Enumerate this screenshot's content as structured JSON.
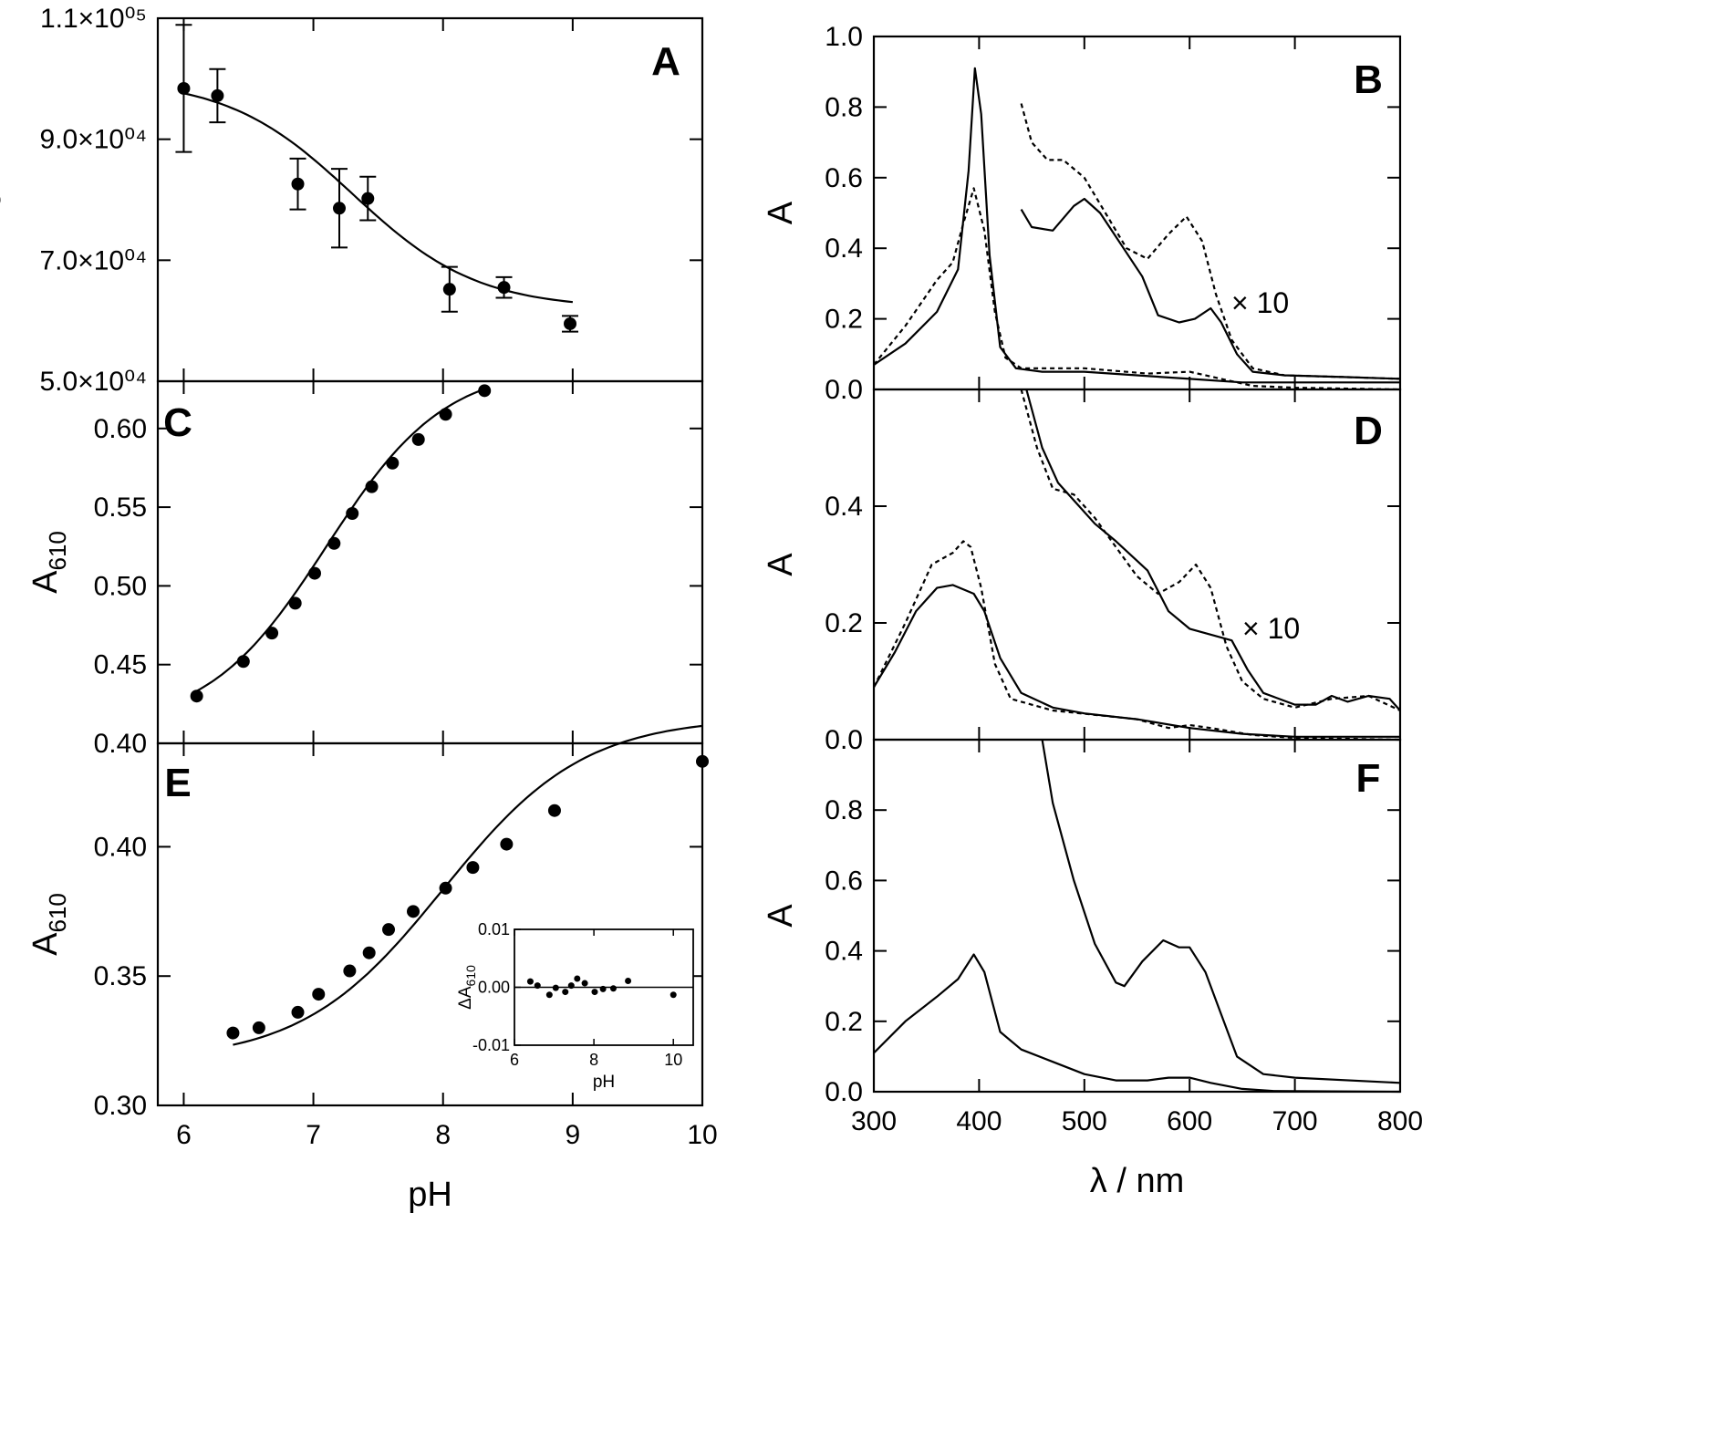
{
  "chart_data": [
    {
      "panel": "A",
      "type": "scatter",
      "xlim": [
        5.8,
        10
      ],
      "ylim": [
        50000,
        110000
      ],
      "ylabel": "ε",
      "yticks": [
        "5.0×10⁰⁴",
        "7.0×10⁰⁴",
        "9.0×10⁰⁴",
        "1.1×10⁰⁵"
      ],
      "points": [
        {
          "x": 6.0,
          "y": 98400,
          "err": 10500
        },
        {
          "x": 6.26,
          "y": 97200,
          "err": 4400
        },
        {
          "x": 6.88,
          "y": 82600,
          "err": 4200
        },
        {
          "x": 7.2,
          "y": 78600,
          "err": 6500
        },
        {
          "x": 7.42,
          "y": 80200,
          "err": 3600
        },
        {
          "x": 8.05,
          "y": 65200,
          "err": 3700
        },
        {
          "x": 8.47,
          "y": 65500,
          "err": 1700
        },
        {
          "x": 8.98,
          "y": 59500,
          "err": 1300
        }
      ],
      "fit": {
        "plateau_low": 62000,
        "plateau_high": 100000,
        "pKa": 7.3,
        "n": 0.9,
        "xrange": [
          6.0,
          9.0
        ]
      }
    },
    {
      "panel": "C",
      "type": "scatter",
      "xlim": [
        5.8,
        10
      ],
      "ylim": [
        0.4,
        0.63
      ],
      "ylabel": "A",
      "ylabel_sub": "610",
      "yticks": [
        "0.40",
        "0.45",
        "0.50",
        "0.55",
        "0.60"
      ],
      "points": [
        {
          "x": 6.1,
          "y": 0.43
        },
        {
          "x": 6.46,
          "y": 0.452
        },
        {
          "x": 6.68,
          "y": 0.47
        },
        {
          "x": 6.86,
          "y": 0.489
        },
        {
          "x": 7.01,
          "y": 0.508
        },
        {
          "x": 7.16,
          "y": 0.527
        },
        {
          "x": 7.3,
          "y": 0.546
        },
        {
          "x": 7.45,
          "y": 0.563
        },
        {
          "x": 7.61,
          "y": 0.578
        },
        {
          "x": 7.81,
          "y": 0.593
        },
        {
          "x": 8.02,
          "y": 0.609
        },
        {
          "x": 8.32,
          "y": 0.624
        }
      ],
      "fit": {
        "plateau_low": 0.41,
        "plateau_high": 0.64,
        "pKa": 7.1,
        "n": 0.95,
        "xrange": [
          6.1,
          8.32
        ]
      }
    },
    {
      "panel": "E",
      "type": "scatter",
      "xlabel": "pH",
      "xticks": [
        "6",
        "7",
        "8",
        "9",
        "10"
      ],
      "xlim": [
        5.8,
        10
      ],
      "ylim": [
        0.3,
        0.44
      ],
      "ylabel": "A",
      "ylabel_sub": "610",
      "yticks": [
        "0.30",
        "0.35",
        "0.40"
      ],
      "points": [
        {
          "x": 6.38,
          "y": 0.328
        },
        {
          "x": 6.58,
          "y": 0.33
        },
        {
          "x": 6.88,
          "y": 0.336
        },
        {
          "x": 7.04,
          "y": 0.343
        },
        {
          "x": 7.28,
          "y": 0.352
        },
        {
          "x": 7.43,
          "y": 0.359
        },
        {
          "x": 7.58,
          "y": 0.368
        },
        {
          "x": 7.77,
          "y": 0.375
        },
        {
          "x": 8.02,
          "y": 0.384
        },
        {
          "x": 8.23,
          "y": 0.392
        },
        {
          "x": 8.49,
          "y": 0.401
        },
        {
          "x": 8.86,
          "y": 0.414
        },
        {
          "x": 10.0,
          "y": 0.433
        }
      ],
      "fit": {
        "plateau_low": 0.317,
        "plateau_high": 0.45,
        "pKa": 8.0,
        "n": 0.8,
        "xrange": [
          6.38,
          10.0
        ]
      },
      "inset": {
        "type": "scatter",
        "xlabel": "pH",
        "ylabel": "ΔA",
        "ylabel_sub": "610",
        "xlim": [
          6,
          10.5
        ],
        "ylim": [
          -0.01,
          0.01
        ],
        "xticks": [
          "6",
          "8",
          "10"
        ],
        "yticks": [
          "-0.01",
          "0.00",
          "0.01"
        ],
        "points": [
          {
            "x": 6.4,
            "y": 0.001
          },
          {
            "x": 6.58,
            "y": 0.0003
          },
          {
            "x": 6.88,
            "y": -0.0013
          },
          {
            "x": 7.04,
            "y": -0.0001
          },
          {
            "x": 7.28,
            "y": -0.0008
          },
          {
            "x": 7.43,
            "y": 0.0003
          },
          {
            "x": 7.58,
            "y": 0.0015
          },
          {
            "x": 7.77,
            "y": 0.0007
          },
          {
            "x": 8.02,
            "y": -0.0008
          },
          {
            "x": 8.23,
            "y": -0.0003
          },
          {
            "x": 8.49,
            "y": -0.0002
          },
          {
            "x": 8.86,
            "y": 0.0011
          },
          {
            "x": 10.0,
            "y": -0.0013
          }
        ]
      }
    },
    {
      "panel": "B",
      "type": "line",
      "xlim": [
        300,
        800
      ],
      "ylim": [
        0,
        1.0
      ],
      "ylabel": "A",
      "yticks": [
        "0.0",
        "0.2",
        "0.4",
        "0.6",
        "0.8",
        "1.0"
      ],
      "annotation": "× 10",
      "series": [
        {
          "style": "solid",
          "points": [
            [
              300,
              0.07
            ],
            [
              330,
              0.13
            ],
            [
              360,
              0.22
            ],
            [
              380,
              0.34
            ],
            [
              390,
              0.62
            ],
            [
              396,
              0.91
            ],
            [
              402,
              0.78
            ],
            [
              410,
              0.38
            ],
            [
              420,
              0.12
            ],
            [
              435,
              0.06
            ],
            [
              460,
              0.05
            ],
            [
              500,
              0.05
            ],
            [
              550,
              0.04
            ],
            [
              600,
              0.03
            ],
            [
              650,
              0.02
            ],
            [
              700,
              0.02
            ],
            [
              800,
              0.02
            ]
          ]
        },
        {
          "style": "dashed",
          "points": [
            [
              300,
              0.07
            ],
            [
              330,
              0.18
            ],
            [
              360,
              0.31
            ],
            [
              375,
              0.36
            ],
            [
              385,
              0.47
            ],
            [
              395,
              0.57
            ],
            [
              405,
              0.45
            ],
            [
              415,
              0.22
            ],
            [
              425,
              0.09
            ],
            [
              440,
              0.06
            ],
            [
              500,
              0.06
            ],
            [
              560,
              0.045
            ],
            [
              600,
              0.05
            ],
            [
              630,
              0.03
            ],
            [
              660,
              0.01
            ],
            [
              700,
              0.005
            ],
            [
              800,
              0.0
            ]
          ]
        },
        {
          "style": "solid",
          "scaled": "×10",
          "points": [
            [
              440,
              0.51
            ],
            [
              450,
              0.46
            ],
            [
              470,
              0.45
            ],
            [
              490,
              0.52
            ],
            [
              500,
              0.54
            ],
            [
              515,
              0.5
            ],
            [
              535,
              0.41
            ],
            [
              555,
              0.32
            ],
            [
              570,
              0.21
            ],
            [
              590,
              0.19
            ],
            [
              605,
              0.2
            ],
            [
              620,
              0.23
            ],
            [
              630,
              0.19
            ],
            [
              645,
              0.1
            ],
            [
              660,
              0.05
            ],
            [
              690,
              0.04
            ],
            [
              750,
              0.035
            ],
            [
              800,
              0.03
            ]
          ]
        },
        {
          "style": "dashed",
          "scaled": "×10",
          "points": [
            [
              440,
              0.81
            ],
            [
              450,
              0.7
            ],
            [
              465,
              0.65
            ],
            [
              480,
              0.65
            ],
            [
              500,
              0.6
            ],
            [
              520,
              0.5
            ],
            [
              540,
              0.4
            ],
            [
              560,
              0.37
            ],
            [
              580,
              0.44
            ],
            [
              597,
              0.49
            ],
            [
              612,
              0.42
            ],
            [
              625,
              0.27
            ],
            [
              640,
              0.14
            ],
            [
              660,
              0.06
            ],
            [
              690,
              0.04
            ],
            [
              750,
              0.035
            ],
            [
              800,
              0.03
            ]
          ]
        }
      ]
    },
    {
      "panel": "D",
      "type": "line",
      "xlim": [
        300,
        800
      ],
      "ylim": [
        0,
        0.6
      ],
      "ylabel": "A",
      "yticks": [
        "0.0",
        "0.2",
        "0.4"
      ],
      "annotation": "× 10",
      "series": [
        {
          "style": "solid",
          "points": [
            [
              300,
              0.09
            ],
            [
              320,
              0.15
            ],
            [
              340,
              0.22
            ],
            [
              360,
              0.26
            ],
            [
              375,
              0.265
            ],
            [
              395,
              0.25
            ],
            [
              405,
              0.22
            ],
            [
              420,
              0.14
            ],
            [
              440,
              0.08
            ],
            [
              470,
              0.055
            ],
            [
              500,
              0.045
            ],
            [
              550,
              0.035
            ],
            [
              600,
              0.02
            ],
            [
              650,
              0.01
            ],
            [
              700,
              0.005
            ],
            [
              800,
              0.005
            ]
          ]
        },
        {
          "style": "dashed",
          "points": [
            [
              300,
              0.09
            ],
            [
              330,
              0.2
            ],
            [
              355,
              0.3
            ],
            [
              375,
              0.32
            ],
            [
              385,
              0.34
            ],
            [
              392,
              0.33
            ],
            [
              402,
              0.26
            ],
            [
              415,
              0.13
            ],
            [
              430,
              0.07
            ],
            [
              470,
              0.05
            ],
            [
              550,
              0.035
            ],
            [
              580,
              0.02
            ],
            [
              600,
              0.025
            ],
            [
              620,
              0.02
            ],
            [
              660,
              0.008
            ],
            [
              700,
              0.003
            ],
            [
              800,
              0.0
            ]
          ]
        },
        {
          "style": "solid",
          "scaled": "×10",
          "points": [
            [
              445,
              0.6
            ],
            [
              460,
              0.5
            ],
            [
              475,
              0.44
            ],
            [
              490,
              0.41
            ],
            [
              510,
              0.37
            ],
            [
              530,
              0.34
            ],
            [
              560,
              0.29
            ],
            [
              580,
              0.22
            ],
            [
              600,
              0.19
            ],
            [
              620,
              0.18
            ],
            [
              640,
              0.17
            ],
            [
              655,
              0.12
            ],
            [
              670,
              0.08
            ],
            [
              700,
              0.06
            ],
            [
              720,
              0.06
            ],
            [
              735,
              0.075
            ],
            [
              750,
              0.065
            ],
            [
              770,
              0.075
            ],
            [
              790,
              0.07
            ],
            [
              800,
              0.05
            ]
          ]
        },
        {
          "style": "dashed",
          "scaled": "×10",
          "points": [
            [
              440,
              0.6
            ],
            [
              455,
              0.5
            ],
            [
              470,
              0.43
            ],
            [
              490,
              0.42
            ],
            [
              510,
              0.38
            ],
            [
              530,
              0.33
            ],
            [
              550,
              0.28
            ],
            [
              570,
              0.25
            ],
            [
              590,
              0.27
            ],
            [
              606,
              0.3
            ],
            [
              620,
              0.26
            ],
            [
              635,
              0.16
            ],
            [
              650,
              0.1
            ],
            [
              670,
              0.07
            ],
            [
              700,
              0.055
            ],
            [
              735,
              0.07
            ],
            [
              770,
              0.075
            ],
            [
              800,
              0.05
            ]
          ]
        }
      ]
    },
    {
      "panel": "F",
      "type": "line",
      "xlabel": "λ / nm",
      "xticks": [
        "300",
        "400",
        "500",
        "600",
        "700",
        "800"
      ],
      "xlim": [
        300,
        800
      ],
      "ylim": [
        0,
        1.0
      ],
      "ylabel": "A",
      "yticks": [
        "0.0",
        "0.2",
        "0.4",
        "0.6",
        "0.8"
      ],
      "series": [
        {
          "style": "solid",
          "points": [
            [
              300,
              0.11
            ],
            [
              330,
              0.2
            ],
            [
              360,
              0.27
            ],
            [
              380,
              0.32
            ],
            [
              395,
              0.39
            ],
            [
              405,
              0.34
            ],
            [
              420,
              0.17
            ],
            [
              440,
              0.12
            ],
            [
              470,
              0.085
            ],
            [
              500,
              0.05
            ],
            [
              530,
              0.032
            ],
            [
              560,
              0.032
            ],
            [
              580,
              0.04
            ],
            [
              600,
              0.04
            ],
            [
              620,
              0.025
            ],
            [
              650,
              0.008
            ],
            [
              680,
              0.002
            ],
            [
              800,
              0.0
            ]
          ]
        },
        {
          "style": "solid",
          "points": [
            [
              460,
              1.0
            ],
            [
              470,
              0.82
            ],
            [
              490,
              0.6
            ],
            [
              510,
              0.42
            ],
            [
              530,
              0.31
            ],
            [
              538,
              0.3
            ],
            [
              555,
              0.37
            ],
            [
              575,
              0.43
            ],
            [
              590,
              0.41
            ],
            [
              600,
              0.41
            ],
            [
              615,
              0.34
            ],
            [
              630,
              0.22
            ],
            [
              645,
              0.1
            ],
            [
              670,
              0.05
            ],
            [
              700,
              0.04
            ],
            [
              800,
              0.025
            ]
          ]
        }
      ]
    }
  ]
}
